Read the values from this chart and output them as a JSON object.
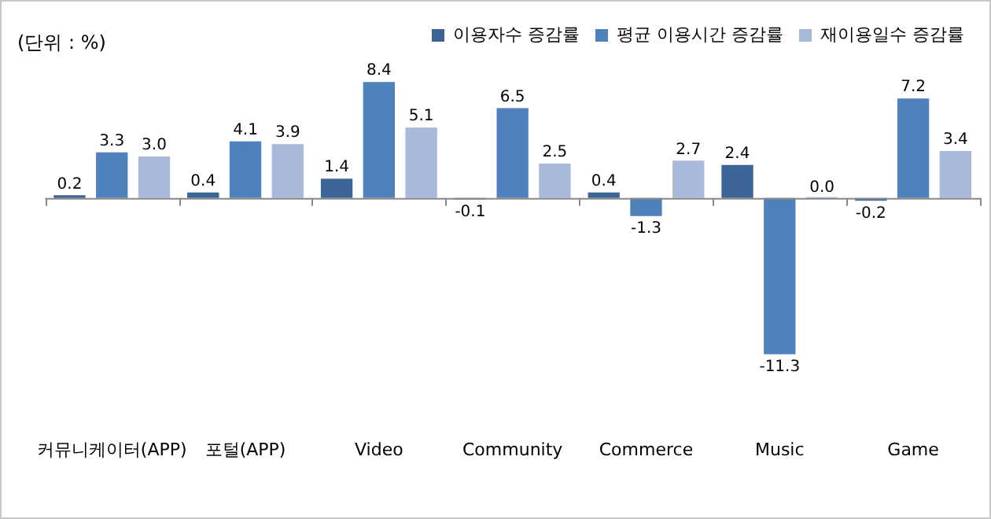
{
  "chart_data": {
    "type": "bar",
    "annotations": [
      "(단위 : %)"
    ],
    "categories": [
      "커뮤니케이터(APP)",
      "포털(APP)",
      "Video",
      "Community",
      "Commerce",
      "Music",
      "Game"
    ],
    "series": [
      {
        "name": "이용자수 증감률",
        "color": "#3c6496",
        "values": [
          0.2,
          0.4,
          1.4,
          -0.1,
          0.4,
          2.4,
          -0.2
        ],
        "value_labels": [
          "0.2",
          "0.4",
          "1.4",
          "-0.1",
          "0.4",
          "2.4",
          "-0.2"
        ]
      },
      {
        "name": "평균 이용시간 증감률",
        "color": "#4f81bd",
        "values": [
          3.3,
          4.1,
          8.4,
          6.5,
          -1.3,
          -11.3,
          7.2
        ],
        "value_labels": [
          "3.3",
          "4.1",
          "8.4",
          "6.5",
          "-1.3",
          "-11.3",
          "7.2"
        ]
      },
      {
        "name": "재이용일수 증감률",
        "color": "#a9b9da",
        "values": [
          3.0,
          3.9,
          5.1,
          2.5,
          2.7,
          0.0,
          3.4
        ],
        "value_labels": [
          "3.0",
          "3.9",
          "5.1",
          "2.5",
          "2.7",
          "0.0",
          "3.4"
        ]
      }
    ],
    "grid": false,
    "legend": "top right"
  }
}
